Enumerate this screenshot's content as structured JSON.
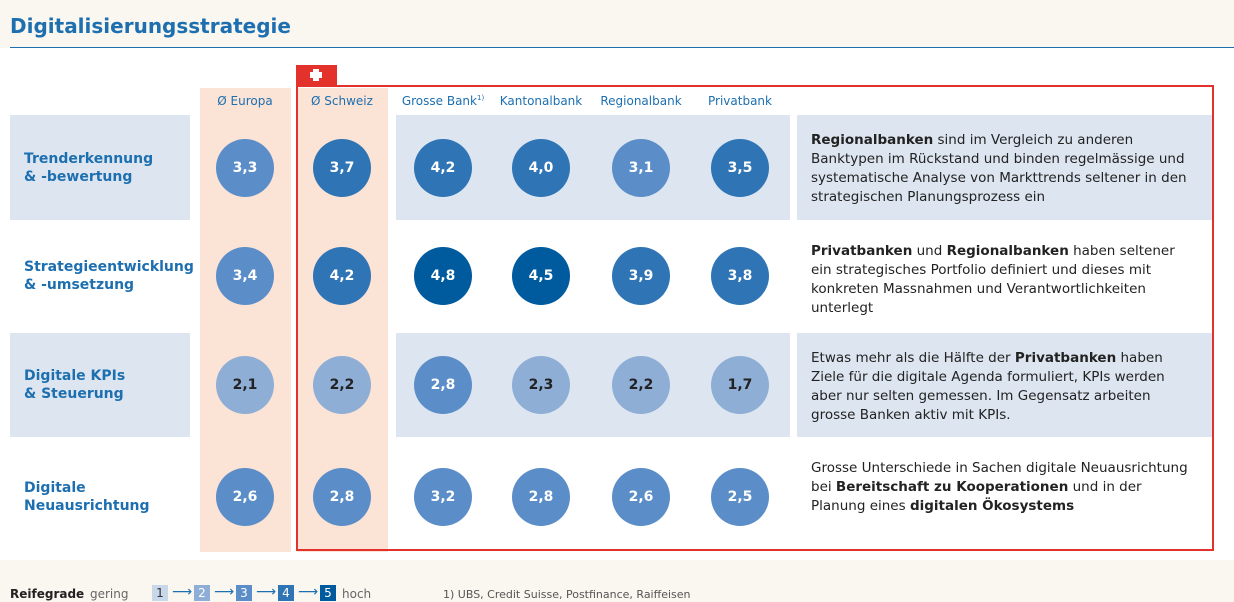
{
  "header": {
    "title": "Digitalisierungsstrategie"
  },
  "table": {
    "columns": [
      {
        "label": "Ø Europa"
      },
      {
        "label": "Ø Schweiz"
      },
      {
        "label": "Grosse Bank",
        "note": "1)"
      },
      {
        "label": "Kantonalbank"
      },
      {
        "label": "Regionalbank"
      },
      {
        "label": "Privatbank"
      }
    ],
    "rows": [
      {
        "label": [
          "Trenderkennung",
          "& -bewertung"
        ],
        "cells": [
          {
            "value": 3.3,
            "label": "3,3"
          },
          {
            "value": 3.7,
            "label": "3,7"
          },
          {
            "value": 4.2,
            "label": "4,2"
          },
          {
            "value": 4.0,
            "label": "4,0"
          },
          {
            "value": 3.1,
            "label": "3,1"
          },
          {
            "value": 3.5,
            "label": "3,5"
          }
        ],
        "comment": [
          {
            "text": "Regionalbanken",
            "bold": true
          },
          {
            "text": " sind im Vergleich zu anderen Banktypen im Rückstand und binden regelmässige und systematische Analyse von Markttrends seltener in den strategischen Planungsprozess ein",
            "bold": false
          }
        ]
      },
      {
        "label": [
          "Strategieentwicklung",
          "& -umsetzung"
        ],
        "cells": [
          {
            "value": 3.4,
            "label": "3,4"
          },
          {
            "value": 4.2,
            "label": "4,2"
          },
          {
            "value": 4.8,
            "label": "4,8"
          },
          {
            "value": 4.5,
            "label": "4,5"
          },
          {
            "value": 3.9,
            "label": "3,9"
          },
          {
            "value": 3.8,
            "label": "3,8"
          }
        ],
        "comment": [
          {
            "text": "Privatbanken",
            "bold": true
          },
          {
            "text": " und ",
            "bold": false
          },
          {
            "text": "Regionalbanken",
            "bold": true
          },
          {
            "text": " haben seltener ein strategisches Portfolio definiert und dieses mit konkreten Massnahmen und Verantwortlichkeiten unterlegt",
            "bold": false
          }
        ]
      },
      {
        "label": [
          "Digitale KPIs",
          "& Steuerung"
        ],
        "cells": [
          {
            "value": 2.1,
            "label": "2,1"
          },
          {
            "value": 2.2,
            "label": "2,2"
          },
          {
            "value": 2.8,
            "label": "2,8"
          },
          {
            "value": 2.3,
            "label": "2,3"
          },
          {
            "value": 2.2,
            "label": "2,2"
          },
          {
            "value": 1.7,
            "label": "1,7"
          }
        ],
        "comment": [
          {
            "text": "Etwas mehr als die Hälfte der ",
            "bold": false
          },
          {
            "text": "Privatbanken",
            "bold": true
          },
          {
            "text": " haben Ziele für die digitale Agenda formuliert, KPIs werden aber nur selten gemessen. Im Gegensatz arbeiten grosse Banken aktiv mit KPIs.",
            "bold": false
          }
        ]
      },
      {
        "label": [
          "Digitale",
          "Neuausrichtung"
        ],
        "cells": [
          {
            "value": 2.6,
            "label": "2,6"
          },
          {
            "value": 2.8,
            "label": "2,8"
          },
          {
            "value": 3.2,
            "label": "3,2"
          },
          {
            "value": 2.8,
            "label": "2,8"
          },
          {
            "value": 2.6,
            "label": "2,6"
          },
          {
            "value": 2.5,
            "label": "2,5"
          }
        ],
        "comment": [
          {
            "text": "Grosse Unterschiede in Sachen digitale Neuausrichtung bei ",
            "bold": false
          },
          {
            "text": "Bereitschaft zu Kooperationen",
            "bold": true
          },
          {
            "text": " und in der Planung eines ",
            "bold": false
          },
          {
            "text": "digitalen Ökosystems",
            "bold": true
          }
        ]
      }
    ]
  },
  "legend": {
    "title": "Reifegrade",
    "low": "gering",
    "high": "hoch",
    "levels": [
      1,
      2,
      3,
      4,
      5
    ],
    "colors": [
      "#c9d7ea",
      "#8eaed6",
      "#5b8ec8",
      "#2f74b5",
      "#005a9e"
    ]
  },
  "footnote": "1) UBS, Credit Suisse, Postfinance, Raiffeisen"
}
